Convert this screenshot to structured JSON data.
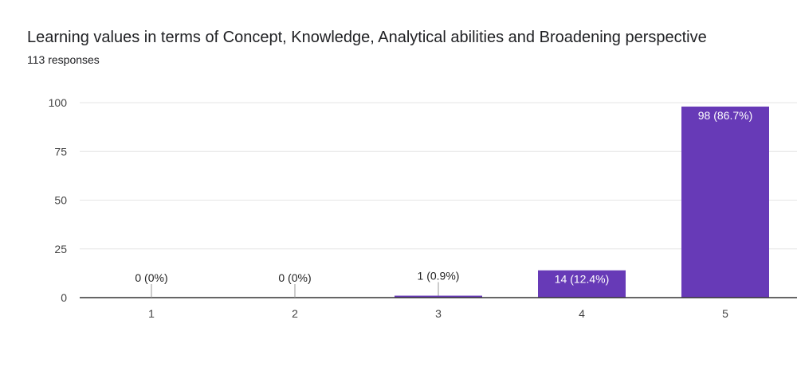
{
  "header": {
    "title": "Learning values in terms of Concept, Knowledge, Analytical abilities and Broadening perspective",
    "subtitle": "113 responses"
  },
  "colors": {
    "bar": "#673ab7",
    "grid": "#e6e6e6",
    "axis": "#333333",
    "label_inside": "#ffffff",
    "label_outside": "#222222"
  },
  "chart_data": {
    "type": "bar",
    "categories": [
      "1",
      "2",
      "3",
      "4",
      "5"
    ],
    "values": [
      0,
      0,
      1,
      14,
      98
    ],
    "data_labels": [
      "0 (0%)",
      "0 (0%)",
      "1 (0.9%)",
      "14 (12.4%)",
      "98 (86.7%)"
    ],
    "yticks": [
      0,
      25,
      50,
      75,
      100
    ],
    "ylim": [
      0,
      100
    ],
    "grid": true,
    "legend": "none"
  }
}
